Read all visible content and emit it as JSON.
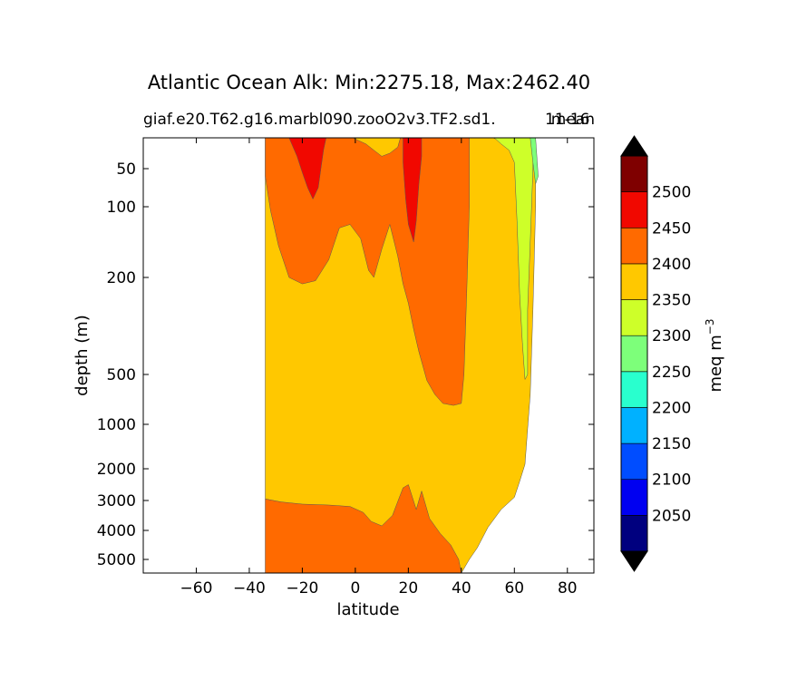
{
  "chart_data": {
    "type": "contour",
    "title": "Atlantic Ocean Alk: Min:2275.18, Max:2462.40",
    "subtitle_left": "giaf.e20.T62.g16.marbl090.zooO2v3.TF2.sd1.",
    "subtitle_right": "mean",
    "subtitle_overlap": "11-16",
    "xlabel": "latitude",
    "ylabel": "depth (m)",
    "xlim": [
      -80,
      90
    ],
    "x_ticks": [
      -60,
      -40,
      -20,
      0,
      20,
      40,
      60,
      80
    ],
    "y_ticks": [
      50,
      100,
      200,
      500,
      1000,
      2000,
      3000,
      4000,
      5000
    ],
    "y_scale": "piecewise depth (stretched upper ocean)",
    "colorbar": {
      "label": "meq m",
      "label_superscript": "−3",
      "levels": [
        2000,
        2050,
        2100,
        2150,
        2200,
        2250,
        2300,
        2350,
        2400,
        2450,
        2500,
        2550
      ],
      "tick_labels": [
        "2050",
        "2100",
        "2150",
        "2200",
        "2250",
        "2300",
        "2350",
        "2400",
        "2450",
        "2500"
      ],
      "colors": [
        "#00007f",
        "#0000f1",
        "#004dff",
        "#00b1ff",
        "#29ffce",
        "#7dff7a",
        "#ceff29",
        "#ffc800",
        "#ff6a00",
        "#f10800",
        "#7f0000"
      ],
      "extend": "both",
      "under_color": "#000000",
      "over_color": "#000000"
    },
    "regions": [
      {
        "name": "2350-2400",
        "color": "#ffc800",
        "points": [
          [
            -34,
            0
          ],
          [
            68,
            0
          ],
          [
            68,
            100
          ],
          [
            67,
            300
          ],
          [
            66,
            700
          ],
          [
            65,
            1100
          ],
          [
            64,
            1900
          ],
          [
            62,
            2400
          ],
          [
            60,
            2900
          ],
          [
            55,
            3300
          ],
          [
            50,
            3900
          ],
          [
            46,
            4600
          ],
          [
            43,
            5000
          ],
          [
            40,
            5300
          ],
          [
            18,
            5300
          ],
          [
            10,
            4800
          ],
          [
            2,
            3900
          ],
          [
            -10,
            3500
          ],
          [
            -20,
            3200
          ],
          [
            -34,
            2950
          ]
        ]
      },
      {
        "name": "2400-2450 upper",
        "color": "#ff6a00",
        "points": [
          [
            -34,
            0
          ],
          [
            43,
            0
          ],
          [
            43,
            100
          ],
          [
            42,
            250
          ],
          [
            41,
            500
          ],
          [
            40,
            790
          ],
          [
            37,
            810
          ],
          [
            33,
            790
          ],
          [
            30,
            700
          ],
          [
            27,
            560
          ],
          [
            24,
            430
          ],
          [
            22,
            360
          ],
          [
            20,
            280
          ],
          [
            18,
            220
          ],
          [
            16,
            170
          ],
          [
            13,
            125
          ],
          [
            10,
            160
          ],
          [
            7,
            200
          ],
          [
            5,
            190
          ],
          [
            2,
            145
          ],
          [
            -2,
            125
          ],
          [
            -6,
            130
          ],
          [
            -10,
            175
          ],
          [
            -15,
            210
          ],
          [
            -20,
            220
          ],
          [
            -25,
            200
          ],
          [
            -29,
            155
          ],
          [
            -32,
            105
          ],
          [
            -34,
            60
          ]
        ]
      },
      {
        "name": "2450-2500 south",
        "color": "#f10800",
        "points": [
          [
            -25,
            0
          ],
          [
            -11,
            0
          ],
          [
            -12,
            20
          ],
          [
            -13,
            50
          ],
          [
            -14,
            75
          ],
          [
            -16,
            90
          ],
          [
            -18,
            75
          ],
          [
            -20,
            55
          ],
          [
            -22,
            30
          ]
        ]
      },
      {
        "name": "2450-2500 north",
        "color": "#f10800",
        "points": [
          [
            18,
            0
          ],
          [
            25,
            0
          ],
          [
            25,
            30
          ],
          [
            24,
            70
          ],
          [
            23,
            120
          ],
          [
            22,
            150
          ],
          [
            20,
            125
          ],
          [
            19,
            90
          ],
          [
            18,
            40
          ]
        ]
      },
      {
        "name": "2350-2400 shelf",
        "color": "#ffc800",
        "points": [
          [
            -1,
            0
          ],
          [
            17,
            0
          ],
          [
            16,
            15
          ],
          [
            13,
            25
          ],
          [
            10,
            30
          ],
          [
            7,
            20
          ],
          [
            4,
            10
          ]
        ]
      },
      {
        "name": "2300-2350",
        "color": "#ceff29",
        "points": [
          [
            52,
            0
          ],
          [
            67,
            0
          ],
          [
            67,
            50
          ],
          [
            66,
            150
          ],
          [
            65,
            300
          ],
          [
            65,
            500
          ],
          [
            64,
            550
          ],
          [
            63,
            400
          ],
          [
            62,
            250
          ],
          [
            61,
            120
          ],
          [
            60,
            40
          ],
          [
            58,
            20
          ],
          [
            55,
            10
          ],
          [
            53,
            2
          ]
        ]
      },
      {
        "name": "2250-2300",
        "color": "#7dff7a",
        "points": [
          [
            66,
            0
          ],
          [
            68,
            0
          ],
          [
            69,
            60
          ],
          [
            68,
            70
          ],
          [
            67,
            40
          ]
        ]
      },
      {
        "name": "2400-2450 deep",
        "color": "#ff6a00",
        "points": [
          [
            -34,
            2950
          ],
          [
            -28,
            3050
          ],
          [
            -20,
            3120
          ],
          [
            -10,
            3150
          ],
          [
            -2,
            3200
          ],
          [
            3,
            3400
          ],
          [
            6,
            3700
          ],
          [
            10,
            3850
          ],
          [
            14,
            3500
          ],
          [
            18,
            2600
          ],
          [
            20,
            2500
          ],
          [
            23,
            3300
          ],
          [
            25,
            2700
          ],
          [
            28,
            3600
          ],
          [
            32,
            4100
          ],
          [
            36,
            4500
          ],
          [
            39,
            5000
          ],
          [
            40,
            5300
          ],
          [
            -34,
            5300
          ]
        ]
      }
    ]
  }
}
